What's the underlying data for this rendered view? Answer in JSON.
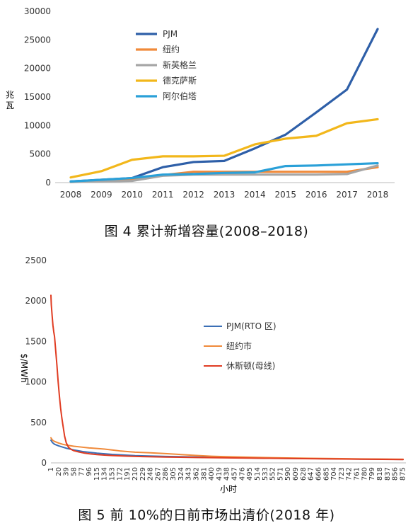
{
  "figure4": {
    "caption": "图 4    累计新增容量(2008–2018)",
    "ylabel": "兆瓦",
    "chart_data": {
      "type": "line",
      "categories": [
        "2008",
        "2009",
        "2010",
        "2011",
        "2012",
        "2013",
        "2014",
        "2015",
        "2016",
        "2017",
        "2018"
      ],
      "y_ticks": [
        0,
        5000,
        10000,
        15000,
        20000,
        25000,
        30000
      ],
      "ylim": [
        0,
        30000
      ],
      "legend_position": "upper-middle",
      "grid": false,
      "series": [
        {
          "name": "PJM",
          "color": "#2e5fa8",
          "values": [
            200,
            500,
            800,
            2700,
            3600,
            3800,
            6000,
            8400,
            12300,
            16300,
            26900
          ]
        },
        {
          "name": "纽约",
          "color": "#f08a3a",
          "values": [
            100,
            300,
            500,
            1300,
            1900,
            1900,
            1900,
            1900,
            1900,
            1900,
            2700
          ]
        },
        {
          "name": "新英格兰",
          "color": "#a6a6a6",
          "values": [
            100,
            200,
            300,
            1200,
            1400,
            1400,
            1400,
            1400,
            1400,
            1500,
            3000
          ]
        },
        {
          "name": "德克萨斯",
          "color": "#f2b71b",
          "values": [
            900,
            2000,
            4000,
            4600,
            4600,
            4700,
            6700,
            7700,
            8200,
            10400,
            11100
          ]
        },
        {
          "name": "阿尔伯塔",
          "color": "#2aa0d8",
          "values": [
            200,
            500,
            800,
            1400,
            1500,
            1700,
            1800,
            2900,
            3000,
            3200,
            3400
          ]
        }
      ]
    }
  },
  "figure5": {
    "caption": "图 5    前 10%的日前市场出清价(2018 年)",
    "ylabel": "$/MWh",
    "xlabel": "小时",
    "chart_data": {
      "type": "line",
      "x_ticks": [
        1,
        20,
        39,
        58,
        77,
        96,
        115,
        134,
        153,
        172,
        191,
        210,
        229,
        248,
        267,
        286,
        305,
        324,
        343,
        362,
        381,
        400,
        419,
        438,
        457,
        476,
        495,
        514,
        533,
        552,
        571,
        590,
        609,
        628,
        647,
        666,
        685,
        704,
        723,
        742,
        761,
        780,
        799,
        818,
        837,
        856,
        875
      ],
      "xlim": [
        1,
        876
      ],
      "y_ticks": [
        0,
        500,
        1000,
        1500,
        2000,
        2500
      ],
      "ylim": [
        0,
        2500
      ],
      "legend_position": "center-right",
      "grid": false,
      "series": [
        {
          "name": "PJM(RTO 区)",
          "color": "#3b6fb6",
          "points": [
            [
              1,
              280
            ],
            [
              5,
              250
            ],
            [
              10,
              230
            ],
            [
              20,
              210
            ],
            [
              30,
              195
            ],
            [
              40,
              180
            ],
            [
              58,
              160
            ],
            [
              80,
              140
            ],
            [
              115,
              120
            ],
            [
              153,
              105
            ],
            [
              210,
              90
            ],
            [
              286,
              80
            ],
            [
              362,
              72
            ],
            [
              438,
              66
            ],
            [
              514,
              60
            ],
            [
              609,
              55
            ],
            [
              704,
              50
            ],
            [
              799,
              46
            ],
            [
              876,
              43
            ]
          ]
        },
        {
          "name": "纽约市",
          "color": "#f08a3a",
          "points": [
            [
              1,
              310
            ],
            [
              5,
              280
            ],
            [
              10,
              265
            ],
            [
              20,
              245
            ],
            [
              30,
              230
            ],
            [
              39,
              220
            ],
            [
              58,
              205
            ],
            [
              77,
              195
            ],
            [
              96,
              185
            ],
            [
              115,
              178
            ],
            [
              134,
              170
            ],
            [
              153,
              160
            ],
            [
              172,
              148
            ],
            [
              191,
              140
            ],
            [
              210,
              132
            ],
            [
              248,
              125
            ],
            [
              286,
              115
            ],
            [
              324,
              103
            ],
            [
              362,
              92
            ],
            [
              400,
              82
            ],
            [
              438,
              76
            ],
            [
              476,
              72
            ],
            [
              514,
              68
            ],
            [
              571,
              62
            ],
            [
              647,
              57
            ],
            [
              723,
              52
            ],
            [
              799,
              48
            ],
            [
              876,
              45
            ]
          ]
        },
        {
          "name": "休斯顿(母线)",
          "color": "#e03c22",
          "points": [
            [
              1,
              2070
            ],
            [
              2,
              1950
            ],
            [
              4,
              1820
            ],
            [
              6,
              1700
            ],
            [
              8,
              1620
            ],
            [
              10,
              1560
            ],
            [
              13,
              1380
            ],
            [
              16,
              1200
            ],
            [
              19,
              1000
            ],
            [
              22,
              830
            ],
            [
              25,
              680
            ],
            [
              28,
              560
            ],
            [
              31,
              460
            ],
            [
              35,
              330
            ],
            [
              39,
              250
            ],
            [
              45,
              190
            ],
            [
              52,
              165
            ],
            [
              58,
              150
            ],
            [
              70,
              135
            ],
            [
              85,
              120
            ],
            [
              100,
              110
            ],
            [
              115,
              103
            ],
            [
              134,
              96
            ],
            [
              153,
              91
            ],
            [
              191,
              83
            ],
            [
              229,
              78
            ],
            [
              286,
              72
            ],
            [
              362,
              67
            ],
            [
              438,
              62
            ],
            [
              533,
              57
            ],
            [
              628,
              52
            ],
            [
              723,
              48
            ],
            [
              799,
              45
            ],
            [
              876,
              42
            ]
          ]
        }
      ]
    }
  }
}
